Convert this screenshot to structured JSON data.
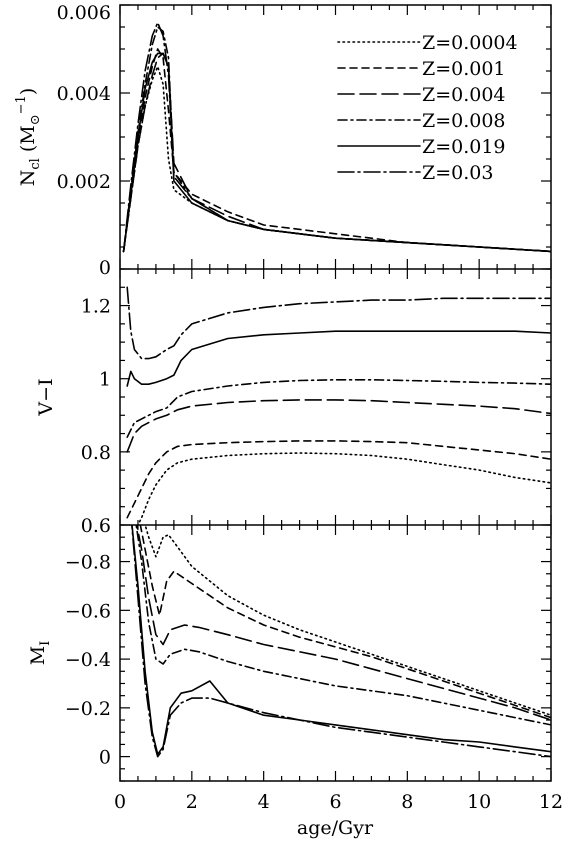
{
  "chart_data": [
    {
      "type": "line",
      "panel": "top",
      "ylabel": {
        "main": "N",
        "sub": "cl",
        "unit_open": " (M",
        "unit_sub": "⊙",
        "unit_sup": "−1",
        "unit_close": ")"
      },
      "xlim": [
        0,
        12
      ],
      "ylim": [
        0,
        0.006
      ],
      "yticks": [
        0,
        0.002,
        0.004,
        0.006
      ],
      "ytick_labels": [
        "0",
        "0.002",
        "0.004",
        "0.006"
      ],
      "legend_position": "top-right",
      "series": [
        {
          "name": "Z=0.0004",
          "style": "dotted",
          "x": [
            0.1,
            0.3,
            0.5,
            0.7,
            0.9,
            1.05,
            1.2,
            1.35,
            1.5,
            2,
            3,
            4,
            6,
            8,
            10,
            12
          ],
          "y": [
            0.0004,
            0.0016,
            0.0028,
            0.0037,
            0.0043,
            0.0046,
            0.0042,
            0.0025,
            0.0018,
            0.0015,
            0.0011,
            0.0009,
            0.0007,
            0.0006,
            0.0005,
            0.0004
          ]
        },
        {
          "name": "Z=0.001",
          "style": "short-dash",
          "x": [
            0.1,
            0.3,
            0.5,
            0.7,
            0.9,
            1.05,
            1.2,
            1.35,
            1.5,
            2,
            3,
            4,
            6,
            8,
            10,
            12
          ],
          "y": [
            0.0004,
            0.0017,
            0.0029,
            0.0039,
            0.0046,
            0.005,
            0.0048,
            0.0036,
            0.0022,
            0.0017,
            0.0013,
            0.001,
            0.0008,
            0.0006,
            0.0005,
            0.0004
          ]
        },
        {
          "name": "Z=0.004",
          "style": "long-dash",
          "x": [
            0.1,
            0.3,
            0.5,
            0.7,
            0.9,
            1.05,
            1.2,
            1.35,
            1.5,
            2,
            3,
            4,
            6,
            8,
            10,
            12
          ],
          "y": [
            0.0004,
            0.0016,
            0.0028,
            0.0037,
            0.0044,
            0.0048,
            0.0049,
            0.0046,
            0.0024,
            0.0016,
            0.0012,
            0.0009,
            0.0007,
            0.0006,
            0.0005,
            0.0004
          ]
        },
        {
          "name": "Z=0.008",
          "style": "dash-dot",
          "x": [
            0.1,
            0.3,
            0.5,
            0.7,
            0.9,
            1.05,
            1.2,
            1.35,
            1.5,
            2,
            3,
            4,
            6,
            8,
            10,
            12
          ],
          "y": [
            0.0004,
            0.0018,
            0.0031,
            0.0042,
            0.0051,
            0.0055,
            0.0054,
            0.0048,
            0.0022,
            0.0016,
            0.0011,
            0.0009,
            0.0007,
            0.0006,
            0.0005,
            0.0004
          ]
        },
        {
          "name": "Z=0.019",
          "style": "solid",
          "x": [
            0.1,
            0.3,
            0.5,
            0.7,
            0.9,
            1.05,
            1.2,
            1.35,
            1.5,
            2,
            3,
            4,
            6,
            8,
            10,
            12
          ],
          "y": [
            0.0004,
            0.0017,
            0.003,
            0.0041,
            0.0047,
            0.0049,
            0.0049,
            0.0046,
            0.002,
            0.0015,
            0.0011,
            0.0009,
            0.0007,
            0.0006,
            0.0005,
            0.0004
          ]
        },
        {
          "name": "Z=0.03",
          "style": "long-dash-dot",
          "x": [
            0.1,
            0.3,
            0.5,
            0.7,
            0.9,
            1.05,
            1.2,
            1.35,
            1.5,
            2,
            3,
            4,
            6,
            8,
            10,
            12
          ],
          "y": [
            0.0004,
            0.0019,
            0.0033,
            0.0045,
            0.0053,
            0.0056,
            0.0053,
            0.0044,
            0.0021,
            0.0016,
            0.0011,
            0.0009,
            0.0007,
            0.0006,
            0.0005,
            0.0004
          ]
        }
      ]
    },
    {
      "type": "line",
      "panel": "middle",
      "ylabel": "V−I",
      "xlim": [
        0,
        12
      ],
      "ylim": [
        0.6,
        1.3
      ],
      "yticks": [
        0.6,
        0.8,
        1.0,
        1.2
      ],
      "ytick_labels": [
        "0.6",
        "0.8",
        "1",
        "1.2"
      ],
      "series": [
        {
          "name": "Z=0.0004",
          "style": "dotted",
          "x": [
            0.2,
            0.4,
            0.6,
            0.8,
            1,
            1.3,
            1.6,
            2,
            3,
            4,
            5,
            6,
            7,
            8,
            9,
            10,
            11,
            12
          ],
          "y": [
            0.55,
            0.58,
            0.62,
            0.67,
            0.71,
            0.75,
            0.77,
            0.78,
            0.79,
            0.795,
            0.797,
            0.795,
            0.79,
            0.78,
            0.765,
            0.75,
            0.73,
            0.715
          ]
        },
        {
          "name": "Z=0.001",
          "style": "short-dash",
          "x": [
            0.2,
            0.4,
            0.6,
            0.8,
            1,
            1.3,
            1.6,
            2,
            3,
            4,
            5,
            6,
            7,
            8,
            9,
            10,
            11,
            12
          ],
          "y": [
            0.62,
            0.66,
            0.7,
            0.74,
            0.77,
            0.8,
            0.815,
            0.82,
            0.825,
            0.828,
            0.83,
            0.83,
            0.828,
            0.825,
            0.815,
            0.805,
            0.795,
            0.78
          ]
        },
        {
          "name": "Z=0.004",
          "style": "long-dash",
          "x": [
            0.2,
            0.4,
            0.6,
            0.8,
            1,
            1.3,
            1.6,
            2,
            3,
            4,
            5,
            6,
            7,
            8,
            9,
            10,
            11,
            12
          ],
          "y": [
            0.8,
            0.85,
            0.87,
            0.88,
            0.89,
            0.9,
            0.915,
            0.925,
            0.935,
            0.94,
            0.942,
            0.942,
            0.94,
            0.935,
            0.93,
            0.925,
            0.918,
            0.905
          ]
        },
        {
          "name": "Z=0.008",
          "style": "dash-dot",
          "x": [
            0.2,
            0.4,
            0.6,
            0.8,
            1,
            1.3,
            1.6,
            2,
            3,
            4,
            5,
            6,
            7,
            8,
            9,
            10,
            11,
            12
          ],
          "y": [
            0.84,
            0.88,
            0.89,
            0.9,
            0.91,
            0.92,
            0.95,
            0.965,
            0.98,
            0.99,
            0.995,
            0.997,
            0.997,
            0.995,
            0.993,
            0.99,
            0.988,
            0.985
          ]
        },
        {
          "name": "Z=0.019",
          "style": "solid",
          "x": [
            0.2,
            0.3,
            0.4,
            0.6,
            0.8,
            1,
            1.3,
            1.5,
            1.7,
            2,
            3,
            4,
            5,
            6,
            7,
            8,
            9,
            10,
            11,
            12
          ],
          "y": [
            0.98,
            1.02,
            1.0,
            0.985,
            0.985,
            0.99,
            1.0,
            1.01,
            1.05,
            1.08,
            1.11,
            1.12,
            1.125,
            1.13,
            1.13,
            1.13,
            1.13,
            1.13,
            1.13,
            1.125
          ]
        },
        {
          "name": "Z=0.03",
          "style": "long-dash-dot",
          "x": [
            0.2,
            0.3,
            0.4,
            0.6,
            0.8,
            1,
            1.3,
            1.5,
            1.7,
            2,
            3,
            4,
            5,
            6,
            7,
            8,
            9,
            10,
            11,
            12
          ],
          "y": [
            1.25,
            1.13,
            1.08,
            1.055,
            1.055,
            1.06,
            1.08,
            1.09,
            1.12,
            1.15,
            1.18,
            1.195,
            1.205,
            1.21,
            1.215,
            1.215,
            1.22,
            1.22,
            1.22,
            1.22
          ]
        }
      ]
    },
    {
      "type": "line",
      "panel": "bottom",
      "ylabel": {
        "main": "M",
        "sub": "I"
      },
      "xlabel": "age/Gyr",
      "xlim": [
        0,
        12
      ],
      "ylim": [
        0.1,
        -0.95
      ],
      "yticks": [
        0,
        -0.2,
        -0.4,
        -0.6,
        -0.8
      ],
      "ytick_labels": [
        "0",
        "−0.2",
        "−0.4",
        "−0.6",
        "−0.8"
      ],
      "xticks": [
        0,
        2,
        4,
        6,
        8,
        10,
        12
      ],
      "xtick_labels": [
        "0",
        "2",
        "4",
        "6",
        "8",
        "10",
        "12"
      ],
      "series": [
        {
          "name": "Z=0.0004",
          "style": "dotted",
          "x": [
            0.6,
            0.8,
            1,
            1.2,
            1.35,
            1.6,
            2,
            3,
            4,
            5,
            6,
            7,
            8,
            9,
            10,
            11,
            12
          ],
          "y": [
            -1.0,
            -0.9,
            -0.82,
            -0.9,
            -0.91,
            -0.86,
            -0.78,
            -0.66,
            -0.58,
            -0.52,
            -0.47,
            -0.42,
            -0.37,
            -0.32,
            -0.27,
            -0.22,
            -0.17
          ]
        },
        {
          "name": "Z=0.001",
          "style": "short-dash",
          "x": [
            0.5,
            0.7,
            0.9,
            1.1,
            1.3,
            1.5,
            2,
            3,
            4,
            5,
            6,
            7,
            8,
            9,
            10,
            11,
            12
          ],
          "y": [
            -1.0,
            -0.85,
            -0.7,
            -0.58,
            -0.72,
            -0.76,
            -0.71,
            -0.61,
            -0.54,
            -0.49,
            -0.45,
            -0.41,
            -0.36,
            -0.31,
            -0.26,
            -0.21,
            -0.16
          ]
        },
        {
          "name": "Z=0.004",
          "style": "long-dash",
          "x": [
            0.4,
            0.6,
            0.8,
            1,
            1.2,
            1.4,
            1.8,
            2.2,
            3,
            4,
            5,
            6,
            7,
            8,
            9,
            10,
            11,
            12
          ],
          "y": [
            -1.0,
            -0.85,
            -0.65,
            -0.5,
            -0.46,
            -0.52,
            -0.54,
            -0.53,
            -0.5,
            -0.46,
            -0.43,
            -0.4,
            -0.36,
            -0.32,
            -0.28,
            -0.24,
            -0.2,
            -0.15
          ]
        },
        {
          "name": "Z=0.008",
          "style": "dash-dot",
          "x": [
            0.4,
            0.6,
            0.8,
            1,
            1.2,
            1.4,
            1.8,
            2.2,
            3,
            4,
            5,
            6,
            7,
            8,
            9,
            10,
            11,
            12
          ],
          "y": [
            -1.0,
            -0.8,
            -0.55,
            -0.4,
            -0.38,
            -0.42,
            -0.44,
            -0.43,
            -0.39,
            -0.35,
            -0.32,
            -0.29,
            -0.27,
            -0.25,
            -0.22,
            -0.19,
            -0.16,
            -0.13
          ]
        },
        {
          "name": "Z=0.019",
          "style": "solid",
          "x": [
            0.3,
            0.5,
            0.7,
            0.9,
            1.05,
            1.2,
            1.4,
            1.7,
            2,
            2.5,
            3,
            4,
            5,
            6,
            7,
            8,
            9,
            10,
            11,
            12
          ],
          "y": [
            -1.0,
            -0.7,
            -0.35,
            -0.1,
            -0.01,
            -0.04,
            -0.2,
            -0.26,
            -0.27,
            -0.31,
            -0.22,
            -0.17,
            -0.15,
            -0.13,
            -0.11,
            -0.09,
            -0.07,
            -0.06,
            -0.04,
            -0.02
          ]
        },
        {
          "name": "Z=0.03",
          "style": "long-dash-dot",
          "x": [
            0.3,
            0.5,
            0.7,
            0.9,
            1.05,
            1.2,
            1.4,
            1.7,
            2,
            2.5,
            3,
            4,
            5,
            6,
            7,
            8,
            9,
            10,
            11,
            12
          ],
          "y": [
            -1.0,
            -0.65,
            -0.3,
            -0.08,
            0.0,
            -0.03,
            -0.17,
            -0.22,
            -0.24,
            -0.24,
            -0.22,
            -0.18,
            -0.15,
            -0.12,
            -0.1,
            -0.08,
            -0.06,
            -0.04,
            -0.02,
            0.0
          ]
        }
      ]
    }
  ]
}
